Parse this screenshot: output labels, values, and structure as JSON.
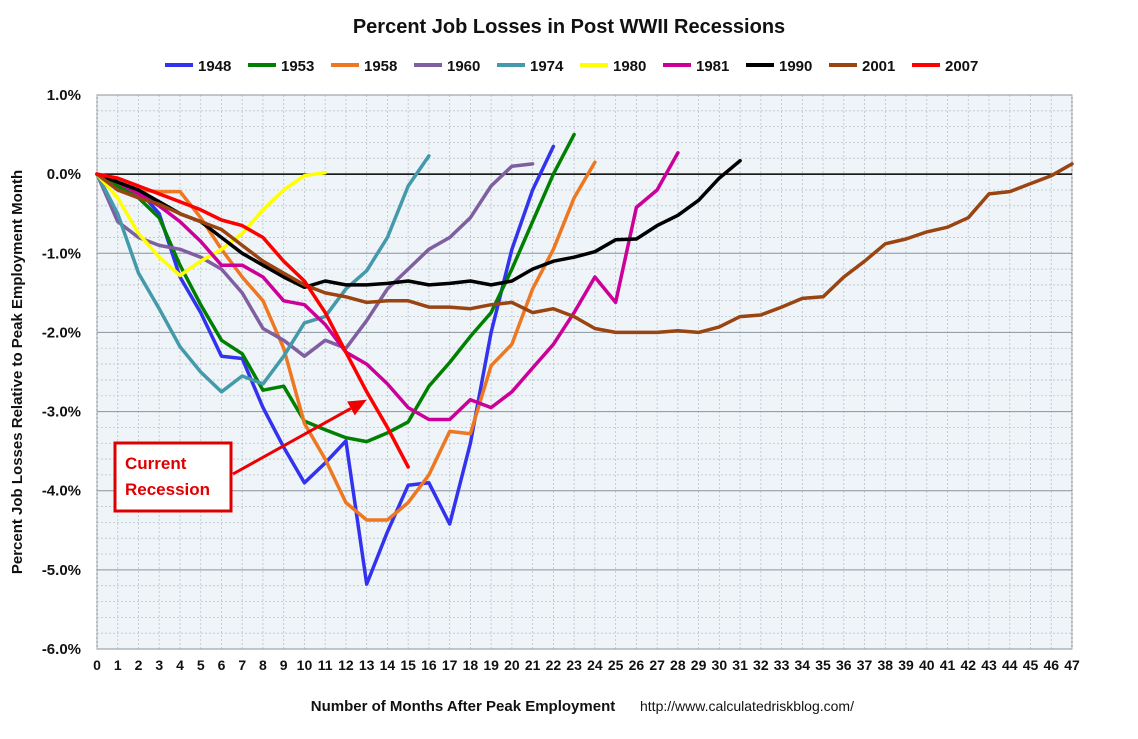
{
  "chart_data": {
    "type": "line",
    "title": "Percent Job Losses in Post WWII Recessions",
    "xlabel": "Number of Months After Peak Employment",
    "ylabel": "Percent Job Losses Relative to Peak Employment Month",
    "source_url": "http://www.calculatedriskblog.com/",
    "xlim": [
      0,
      47
    ],
    "ylim": [
      -6.0,
      1.0
    ],
    "x_ticks": [
      0,
      1,
      2,
      3,
      4,
      5,
      6,
      7,
      8,
      9,
      10,
      11,
      12,
      13,
      14,
      15,
      16,
      17,
      18,
      19,
      20,
      21,
      22,
      23,
      24,
      25,
      26,
      27,
      28,
      29,
      30,
      31,
      32,
      33,
      34,
      35,
      36,
      37,
      38,
      39,
      40,
      41,
      42,
      43,
      44,
      45,
      46,
      47
    ],
    "y_ticks": [
      1.0,
      0.0,
      -1.0,
      -2.0,
      -3.0,
      -4.0,
      -5.0,
      -6.0
    ],
    "y_tick_labels": [
      "1.0%",
      "0.0%",
      "-1.0%",
      "-2.0%",
      "-3.0%",
      "-4.0%",
      "-5.0%",
      "-6.0%"
    ],
    "grid": true,
    "legend_position": "top",
    "series": [
      {
        "name": "1948",
        "color": "#3333ee",
        "values": [
          0,
          -0.1,
          -0.2,
          -0.5,
          -1.3,
          -1.75,
          -2.3,
          -2.33,
          -2.95,
          -3.45,
          -3.9,
          -3.65,
          -3.37,
          -5.18,
          -4.52,
          -3.93,
          -3.9,
          -4.42,
          -3.4,
          -2.0,
          -0.95,
          -0.2,
          0.35
        ]
      },
      {
        "name": "1953",
        "color": "#008000",
        "values": [
          0,
          -0.15,
          -0.3,
          -0.55,
          -1.15,
          -1.65,
          -2.1,
          -2.27,
          -2.73,
          -2.68,
          -3.12,
          -3.23,
          -3.33,
          -3.38,
          -3.27,
          -3.13,
          -2.68,
          -2.38,
          -2.05,
          -1.75,
          -1.2,
          -0.6,
          0.0,
          0.5
        ]
      },
      {
        "name": "1958",
        "color": "#ee7722",
        "values": [
          0,
          -0.1,
          -0.2,
          -0.22,
          -0.22,
          -0.55,
          -0.95,
          -1.3,
          -1.6,
          -2.2,
          -3.15,
          -3.6,
          -4.15,
          -4.37,
          -4.37,
          -4.15,
          -3.8,
          -3.25,
          -3.28,
          -2.42,
          -2.15,
          -1.45,
          -0.95,
          -0.3,
          0.15
        ]
      },
      {
        "name": "1960",
        "color": "#7f5f9f",
        "values": [
          0,
          -0.6,
          -0.8,
          -0.9,
          -0.95,
          -1.05,
          -1.2,
          -1.5,
          -1.95,
          -2.1,
          -2.3,
          -2.1,
          -2.2,
          -1.85,
          -1.45,
          -1.2,
          -0.95,
          -0.8,
          -0.55,
          -0.15,
          0.1,
          0.13
        ]
      },
      {
        "name": "1974",
        "color": "#4499aa",
        "values": [
          0,
          -0.5,
          -1.25,
          -1.7,
          -2.18,
          -2.5,
          -2.75,
          -2.55,
          -2.65,
          -2.3,
          -1.88,
          -1.8,
          -1.45,
          -1.22,
          -0.8,
          -0.15,
          0.23
        ]
      },
      {
        "name": "1980",
        "color": "#ffff00",
        "values": [
          0,
          -0.3,
          -0.75,
          -1.05,
          -1.28,
          -1.1,
          -0.95,
          -0.75,
          -0.45,
          -0.2,
          -0.02,
          0.02
        ]
      },
      {
        "name": "1981",
        "color": "#cc0099",
        "values": [
          0,
          -0.1,
          -0.25,
          -0.4,
          -0.6,
          -0.85,
          -1.15,
          -1.15,
          -1.3,
          -1.6,
          -1.65,
          -1.9,
          -2.25,
          -2.4,
          -2.65,
          -2.95,
          -3.1,
          -3.1,
          -2.85,
          -2.95,
          -2.75,
          -2.45,
          -2.15,
          -1.75,
          -1.3,
          -1.62,
          -0.42,
          -0.2,
          0.27
        ]
      },
      {
        "name": "1990",
        "color": "#000000",
        "values": [
          0,
          -0.1,
          -0.2,
          -0.35,
          -0.5,
          -0.6,
          -0.8,
          -1.0,
          -1.15,
          -1.3,
          -1.43,
          -1.35,
          -1.4,
          -1.4,
          -1.38,
          -1.35,
          -1.4,
          -1.38,
          -1.35,
          -1.4,
          -1.35,
          -1.2,
          -1.1,
          -1.05,
          -0.98,
          -0.83,
          -0.82,
          -0.65,
          -0.52,
          -0.33,
          -0.05,
          0.17
        ]
      },
      {
        "name": "2001",
        "color": "#994411",
        "values": [
          0,
          -0.2,
          -0.3,
          -0.38,
          -0.5,
          -0.6,
          -0.7,
          -0.9,
          -1.1,
          -1.25,
          -1.4,
          -1.5,
          -1.55,
          -1.62,
          -1.6,
          -1.6,
          -1.68,
          -1.68,
          -1.7,
          -1.65,
          -1.62,
          -1.75,
          -1.7,
          -1.8,
          -1.95,
          -2.0,
          -2.0,
          -2.0,
          -1.98,
          -2.0,
          -1.93,
          -1.8,
          -1.78,
          -1.68,
          -1.57,
          -1.55,
          -1.3,
          -1.1,
          -0.88,
          -0.82,
          -0.73,
          -0.67,
          -0.55,
          -0.25,
          -0.22,
          -0.12,
          -0.02,
          0.13
        ]
      },
      {
        "name": "2007",
        "color": "#ff0000",
        "values": [
          0,
          -0.05,
          -0.15,
          -0.25,
          -0.35,
          -0.45,
          -0.58,
          -0.65,
          -0.8,
          -1.1,
          -1.35,
          -1.75,
          -2.25,
          -2.75,
          -3.2,
          -3.7
        ]
      }
    ],
    "annotation": {
      "lines": [
        "Current",
        "Recession"
      ],
      "arrow_to": [
        13.0,
        -2.85
      ]
    }
  }
}
